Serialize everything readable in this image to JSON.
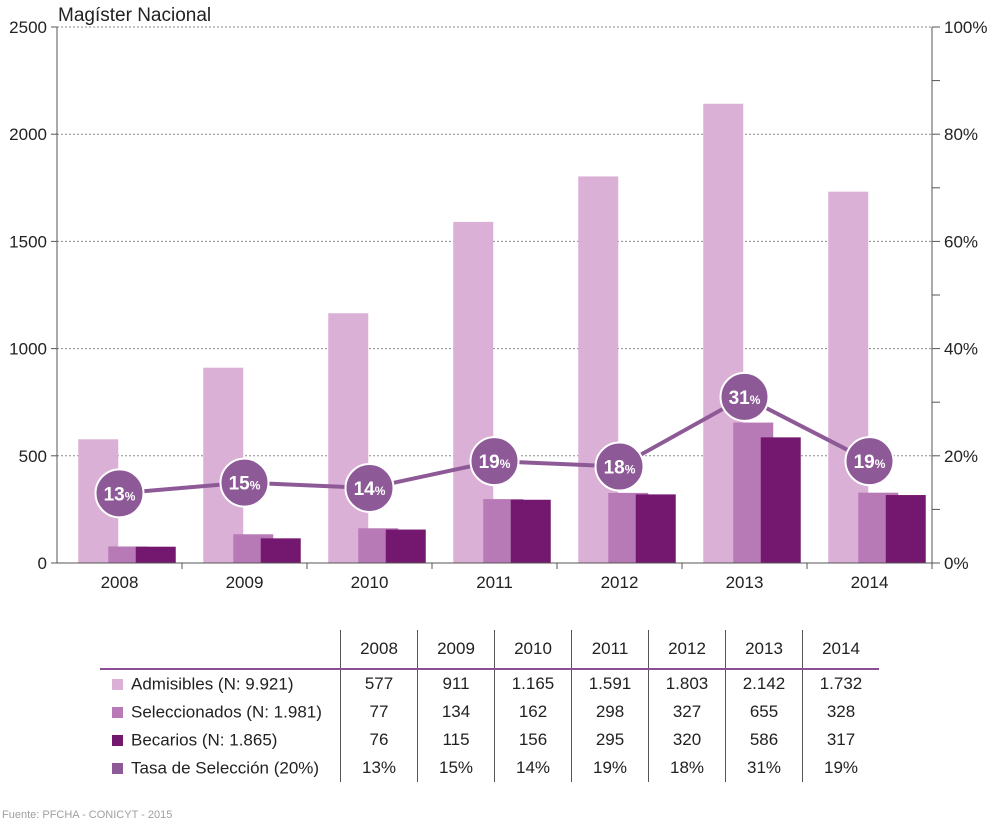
{
  "chart_data": {
    "type": "bar",
    "title": "Magíster Nacional",
    "categories": [
      "2008",
      "2009",
      "2010",
      "2011",
      "2012",
      "2013",
      "2014"
    ],
    "ylim": [
      0,
      2500
    ],
    "y_ticks": [
      "0",
      "500",
      "1000",
      "1500",
      "2000",
      "2500"
    ],
    "y2lim": [
      0,
      100
    ],
    "y2_ticks": [
      "0%",
      "20%",
      "40%",
      "60%",
      "80%",
      "100%"
    ],
    "grid": true,
    "series": [
      {
        "name": "Admisibles (N: 9.921)",
        "kind": "bar",
        "color": "#dbb0d6",
        "values": [
          577,
          911,
          1165,
          1591,
          1803,
          2142,
          1732
        ]
      },
      {
        "name": "Seleccionados (N: 1.981)",
        "kind": "bar",
        "color": "#b77ab6",
        "values": [
          77,
          134,
          162,
          298,
          327,
          655,
          328
        ]
      },
      {
        "name": "Becarios (N: 1.865)",
        "kind": "bar",
        "color": "#74186f",
        "values": [
          76,
          115,
          156,
          295,
          320,
          586,
          317
        ]
      },
      {
        "name": "Tasa de Selección (20%)",
        "kind": "line",
        "axis": "right",
        "color": "#8d5a97",
        "values": [
          13,
          15,
          14,
          19,
          18,
          31,
          19
        ],
        "labels": [
          "13",
          "15",
          "14",
          "19",
          "18",
          "31",
          "19"
        ],
        "label_suffix": "%"
      }
    ]
  },
  "table": {
    "header": [
      "2008",
      "2009",
      "2010",
      "2011",
      "2012",
      "2013",
      "2014"
    ],
    "rows": [
      {
        "label": "Admisibles (N: 9.921)",
        "color": "#dbb0d6",
        "cells": [
          "577",
          "911",
          "1.165",
          "1.591",
          "1.803",
          "2.142",
          "1.732"
        ]
      },
      {
        "label": "Seleccionados (N: 1.981)",
        "color": "#b77ab6",
        "cells": [
          "77",
          "134",
          "162",
          "298",
          "327",
          "655",
          "328"
        ]
      },
      {
        "label": "Becarios (N: 1.865)",
        "color": "#74186f",
        "cells": [
          "76",
          "115",
          "156",
          "295",
          "320",
          "586",
          "317"
        ]
      },
      {
        "label": "Tasa de Selección (20%)",
        "color": "#8d5a97",
        "cells": [
          "13%",
          "15%",
          "14%",
          "19%",
          "18%",
          "31%",
          "19%"
        ]
      }
    ]
  },
  "source": "Fuente: PFCHA - CONICYT - 2015"
}
